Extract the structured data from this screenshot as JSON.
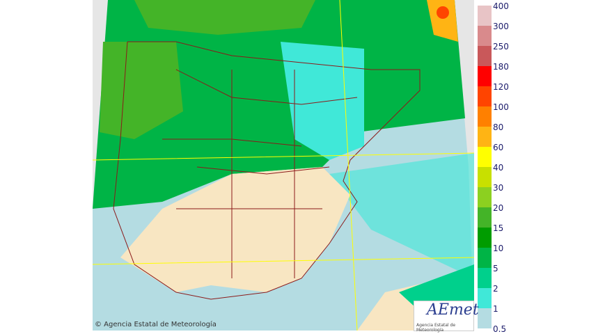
{
  "legend": {
    "labels": [
      "400",
      "300",
      "250",
      "180",
      "120",
      "100",
      "80",
      "60",
      "40",
      "30",
      "20",
      "15",
      "10",
      "5",
      "2",
      "1",
      "0.5"
    ],
    "colors": [
      "#e8c4c6",
      "#d98a8c",
      "#c9585a",
      "#ff0000",
      "#ff4400",
      "#ff8000",
      "#ffb414",
      "#ffff00",
      "#c8e000",
      "#8cd020",
      "#44b428",
      "#009c00",
      "#00b446",
      "#00d08c",
      "#40e8d8",
      "#b4dce2"
    ]
  },
  "credit": "© Agencia Estatal de Meteorología",
  "logo": {
    "name": "AEmet",
    "subtitle": "Agencia Estatal de Meteorología"
  },
  "colors": {
    "land_no_rain": "#f8e6c2",
    "background": "#e6e6e6",
    "border_lines": "#8b1a1a",
    "graticule": "#ffff00"
  }
}
